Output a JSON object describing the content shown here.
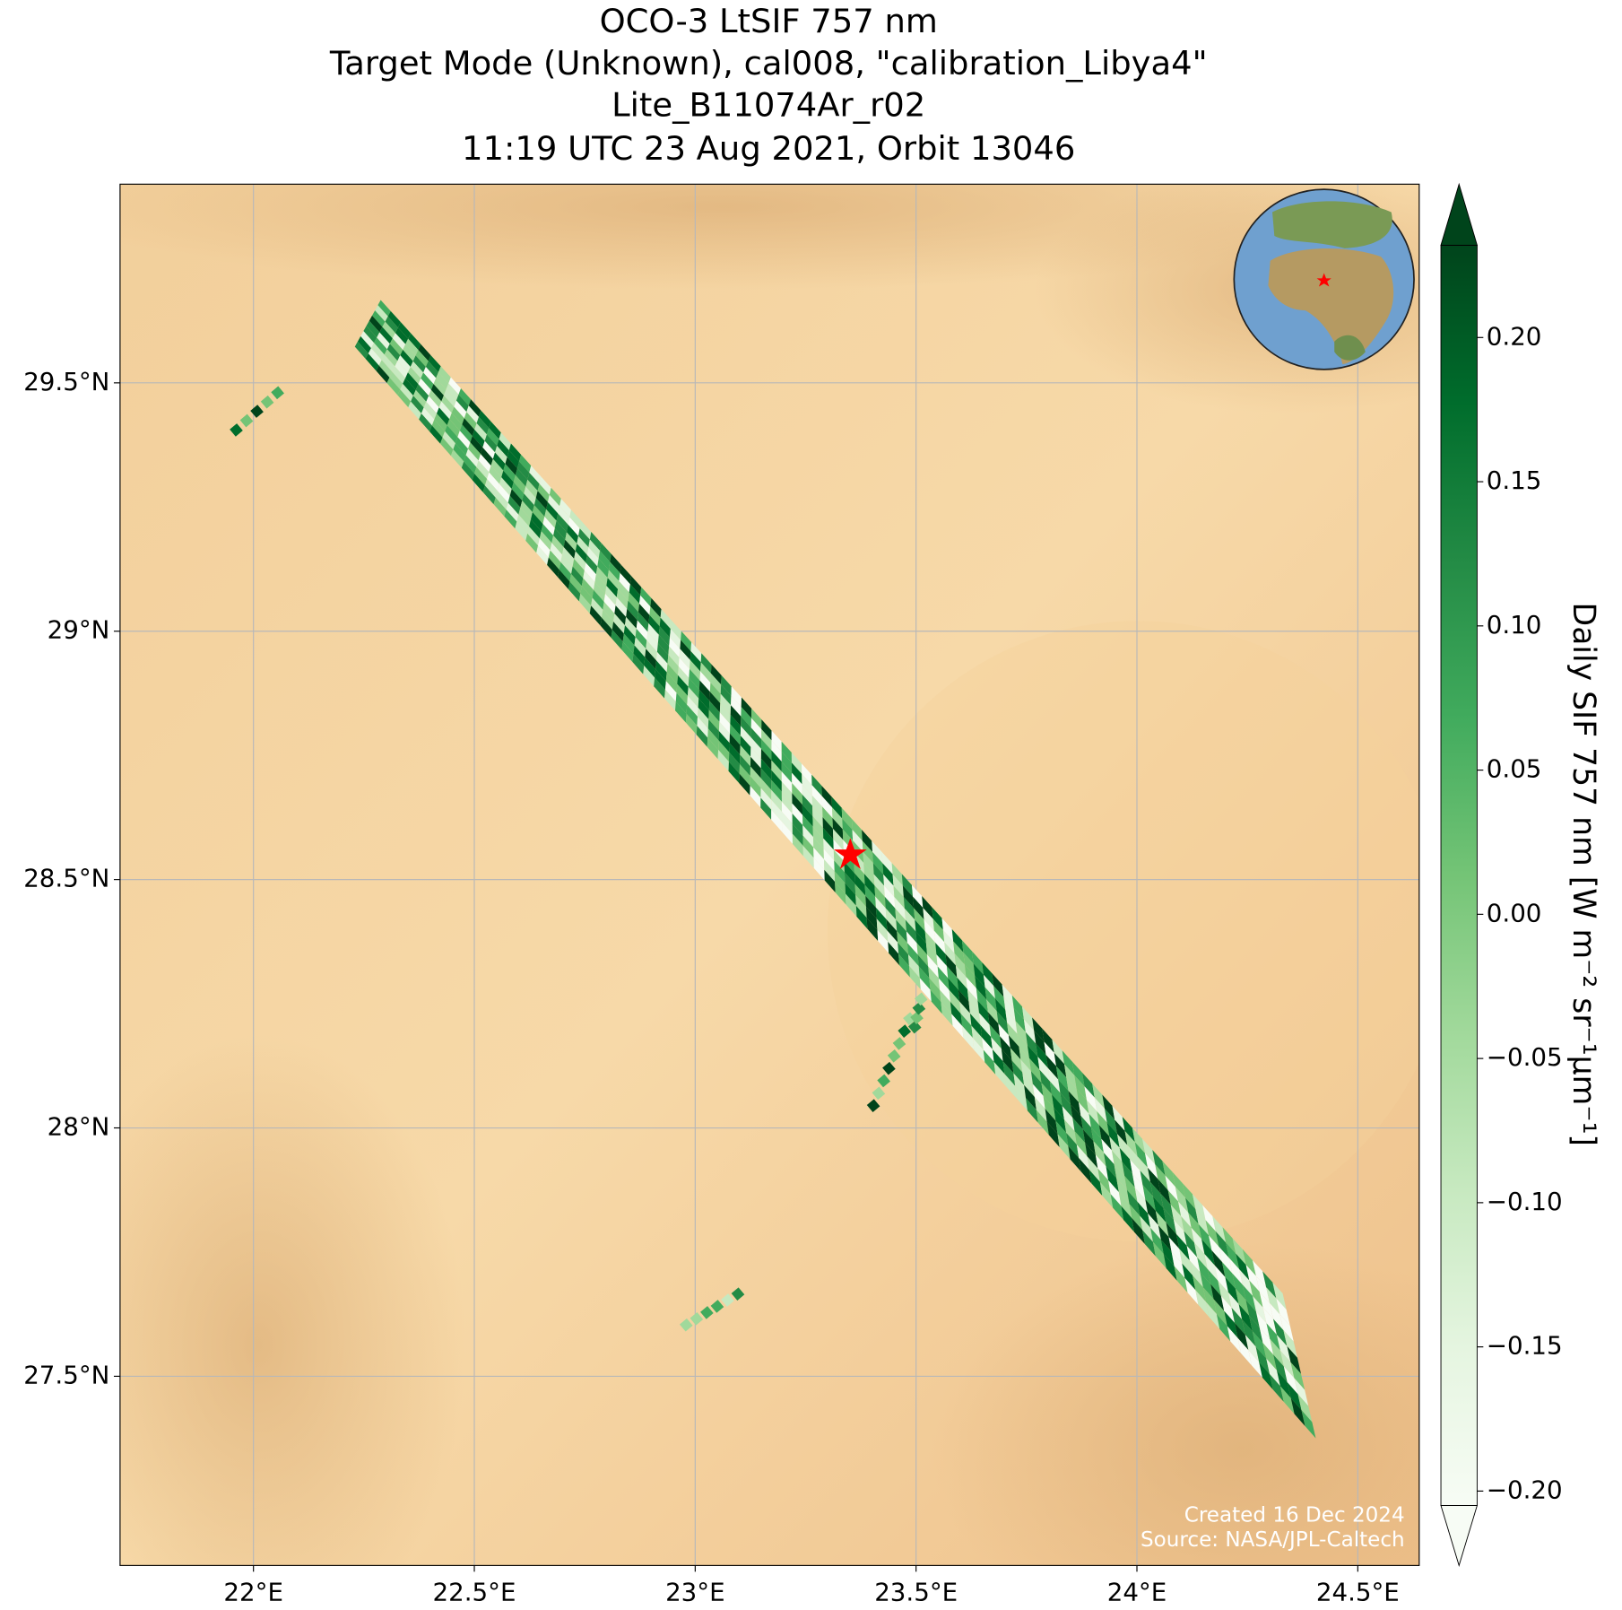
{
  "chart_data": {
    "type": "map",
    "title": [
      "OCO-3 LtSIF 757 nm",
      "Target Mode (Unknown), cal008, \"calibration_Libya4\"",
      "Lite_B11074Ar_r02",
      "11:19 UTC 23 Aug 2021, Orbit 13046"
    ],
    "xlim": [
      21.698,
      24.639
    ],
    "ylim": [
      27.119,
      29.9
    ],
    "xticks": [
      {
        "value": 22,
        "label": "22°E"
      },
      {
        "value": 22.5,
        "label": "22.5°E"
      },
      {
        "value": 23,
        "label": "23°E"
      },
      {
        "value": 23.5,
        "label": "23.5°E"
      },
      {
        "value": 24,
        "label": "24°E"
      },
      {
        "value": 24.5,
        "label": "24.5°E"
      }
    ],
    "yticks": [
      {
        "value": 27.5,
        "label": "27.5°N"
      },
      {
        "value": 28,
        "label": "28°N"
      },
      {
        "value": 28.5,
        "label": "28.5°N"
      },
      {
        "value": 29,
        "label": "29°N"
      },
      {
        "value": 29.5,
        "label": "29.5°N"
      }
    ],
    "grid": true,
    "colorbar": {
      "label": "Daily SIF 757 nm [W m⁻² sr⁻¹μm⁻¹]",
      "lim": [
        -0.205,
        0.232
      ],
      "ticks": [
        {
          "value": 0.2,
          "label": "0.20"
        },
        0.15,
        {
          "value": 0.1,
          "label": "0.10"
        },
        0.05,
        {
          "value": 0,
          "label": "0.00"
        },
        {
          "value": -0.05,
          "label": "−0.05"
        },
        {
          "value": -0.1,
          "label": "−0.10"
        },
        {
          "value": -0.15,
          "label": "−0.15"
        },
        {
          "value": -0.2,
          "label": "−0.20"
        }
      ],
      "extend": "both"
    },
    "credits": [
      "Created 16 Dec 2024",
      "Source: NASA/JPL-Caltech"
    ]
  }
}
